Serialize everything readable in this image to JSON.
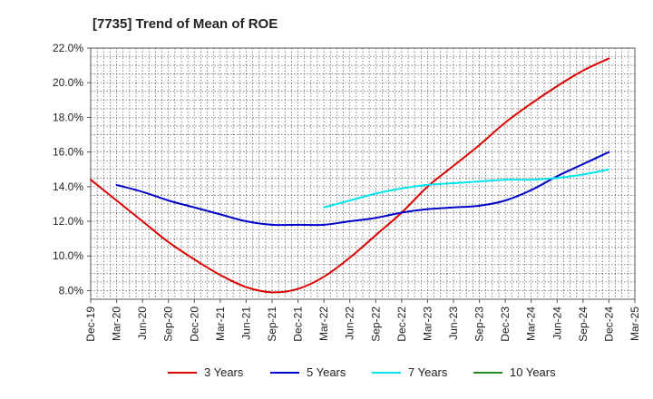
{
  "chart_data": {
    "type": "line",
    "title": "[7735]  Trend of Mean of ROE",
    "xlabel": "",
    "ylabel": "",
    "x": [
      "Dec-19",
      "Mar-20",
      "Jun-20",
      "Sep-20",
      "Dec-20",
      "Mar-21",
      "Jun-21",
      "Sep-21",
      "Dec-21",
      "Mar-22",
      "Jun-22",
      "Sep-22",
      "Dec-22",
      "Mar-23",
      "Jun-23",
      "Sep-23",
      "Dec-23",
      "Mar-24",
      "Jun-24",
      "Sep-24",
      "Dec-24",
      "Mar-25"
    ],
    "ylim": [
      7.5,
      22.0
    ],
    "yticks": [
      8.0,
      10.0,
      12.0,
      14.0,
      16.0,
      18.0,
      20.0,
      22.0
    ],
    "ytick_labels": [
      "8.0%",
      "10.0%",
      "12.0%",
      "14.0%",
      "16.0%",
      "18.0%",
      "20.0%",
      "22.0%"
    ],
    "grid": true,
    "legend_position": "bottom",
    "series": [
      {
        "name": "3 Years",
        "color": "#dd0000",
        "values": [
          14.4,
          13.2,
          12.0,
          10.8,
          9.8,
          8.9,
          8.2,
          7.9,
          8.1,
          8.8,
          9.9,
          11.2,
          12.5,
          14.0,
          15.2,
          16.4,
          17.7,
          18.8,
          19.8,
          20.7,
          21.4,
          null
        ]
      },
      {
        "name": "5 Years",
        "color": "#0000cc",
        "values": [
          null,
          14.1,
          13.7,
          13.2,
          12.8,
          12.4,
          12.0,
          11.8,
          11.8,
          11.8,
          12.0,
          12.2,
          12.5,
          12.7,
          12.8,
          12.9,
          13.2,
          13.8,
          14.6,
          15.3,
          16.0,
          null
        ]
      },
      {
        "name": "7 Years",
        "color": "#00e5ee",
        "values": [
          null,
          null,
          null,
          null,
          null,
          null,
          null,
          null,
          null,
          12.8,
          13.2,
          13.6,
          13.9,
          14.1,
          14.2,
          14.3,
          14.4,
          14.4,
          14.5,
          14.7,
          15.0,
          null
        ]
      },
      {
        "name": "10 Years",
        "color": "#228b22",
        "values": [
          null,
          null,
          null,
          null,
          null,
          null,
          null,
          null,
          null,
          null,
          null,
          null,
          null,
          null,
          null,
          null,
          null,
          null,
          null,
          null,
          null,
          null
        ]
      }
    ]
  }
}
